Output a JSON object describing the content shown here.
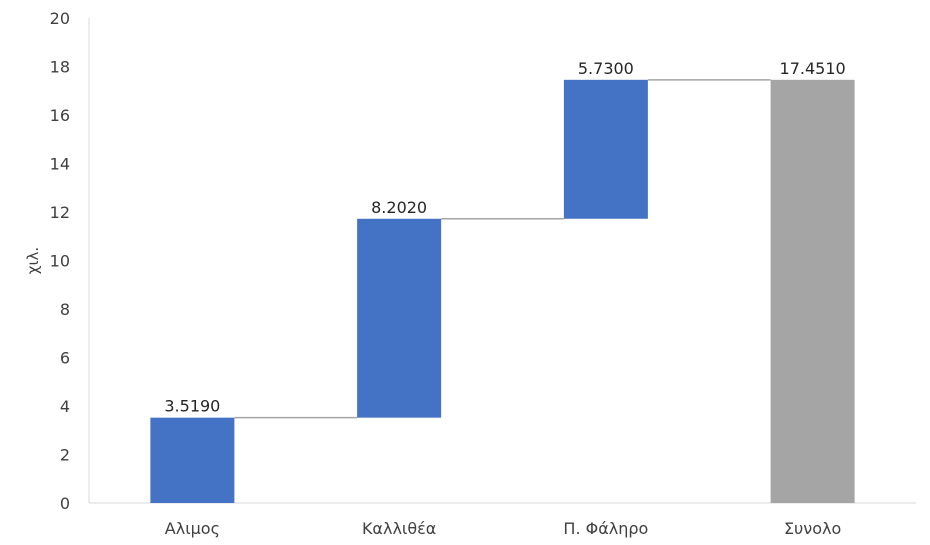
{
  "chart_data": {
    "type": "bar",
    "subtype": "waterfall",
    "title": "",
    "xlabel": "",
    "ylabel": "χιλ.",
    "ylim": [
      0,
      20
    ],
    "yticks": [
      0,
      2,
      4,
      6,
      8,
      10,
      12,
      14,
      16,
      18,
      20
    ],
    "grid": false,
    "legend": "none",
    "categories": [
      "Αλιμος",
      "Καλλιθέα",
      "Π. Φάληρο",
      "Συνολο"
    ],
    "values": [
      3.519,
      8.202,
      5.73,
      17.451
    ],
    "value_labels": [
      "3.5190",
      "8.2020",
      "5.7300",
      "17.4510"
    ],
    "is_total": [
      false,
      false,
      false,
      true
    ],
    "colors": {
      "increase": "#4472C4",
      "total": "#A5A5A5",
      "connector": "#A5A5A5",
      "axis": "#D9D9D9"
    }
  }
}
